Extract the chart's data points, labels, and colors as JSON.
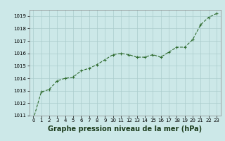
{
  "hours": [
    0,
    1,
    2,
    3,
    4,
    5,
    6,
    7,
    8,
    9,
    10,
    11,
    12,
    13,
    14,
    15,
    16,
    17,
    18,
    19,
    20,
    21,
    22,
    23
  ],
  "pressure": [
    1010.7,
    1012.9,
    1013.1,
    1013.8,
    1014.0,
    1014.1,
    1014.6,
    1014.8,
    1015.1,
    1015.5,
    1015.9,
    1016.0,
    1015.9,
    1015.7,
    1015.7,
    1015.9,
    1015.7,
    1016.1,
    1016.5,
    1016.5,
    1017.1,
    1018.3,
    1018.9,
    1019.2
  ],
  "line_color": "#2d6a2d",
  "marker_color": "#2d6a2d",
  "bg_color": "#cce8e8",
  "grid_color": "#aacccc",
  "xlabel": "Graphe pression niveau de la mer (hPa)",
  "xlabel_color": "#1a3a1a",
  "ylim": [
    1011,
    1019.5
  ],
  "xlim": [
    -0.5,
    23.5
  ],
  "yticks": [
    1011,
    1012,
    1013,
    1014,
    1015,
    1016,
    1017,
    1018,
    1019
  ],
  "xticks": [
    0,
    1,
    2,
    3,
    4,
    5,
    6,
    7,
    8,
    9,
    10,
    11,
    12,
    13,
    14,
    15,
    16,
    17,
    18,
    19,
    20,
    21,
    22,
    23
  ],
  "xtick_labels": [
    "0",
    "1",
    "2",
    "3",
    "4",
    "5",
    "6",
    "7",
    "8",
    "9",
    "10",
    "11",
    "12",
    "13",
    "14",
    "15",
    "16",
    "17",
    "18",
    "19",
    "20",
    "21",
    "22",
    "23"
  ],
  "tick_fontsize": 5.0,
  "xlabel_fontsize": 7.0,
  "line_width": 0.8,
  "marker_size": 3.0
}
